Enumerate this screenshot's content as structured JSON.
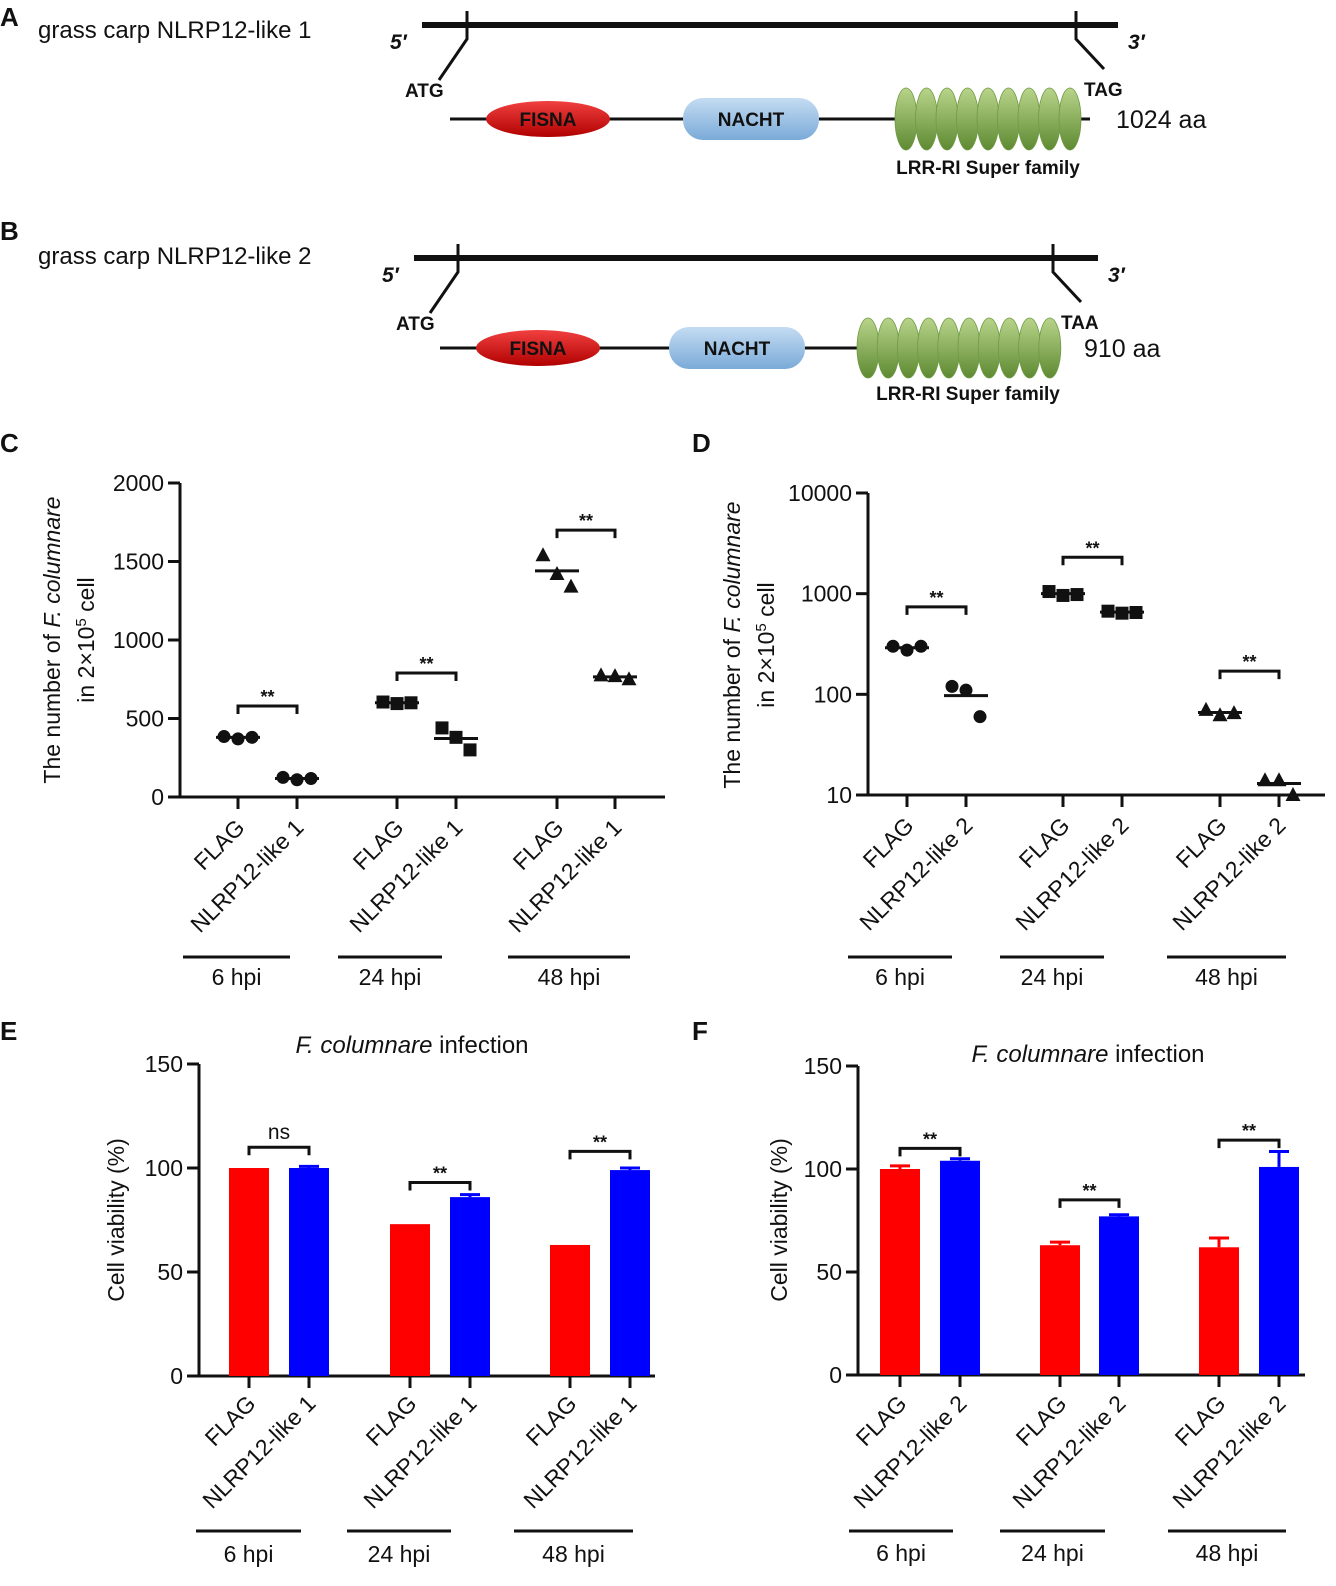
{
  "figure": {
    "panel_letters": [
      "A",
      "B",
      "C",
      "D",
      "E",
      "F"
    ]
  },
  "gene_diagrams": [
    {
      "panel": "A",
      "title": "grass carp NLRP12-like 1",
      "five_prime": "5′",
      "three_prime": "3′",
      "start_codon": "ATG",
      "stop_codon": "TAG",
      "domains": [
        "FISNA",
        "NACHT"
      ],
      "lrr_label": "LRR-RI Super family",
      "lrr_repeat_count": 9,
      "length": "1024 aa"
    },
    {
      "panel": "B",
      "title": "grass carp NLRP12-like 2",
      "five_prime": "5′",
      "three_prime": "3′",
      "start_codon": "ATG",
      "stop_codon": "TAA",
      "domains": [
        "FISNA",
        "NACHT"
      ],
      "lrr_label": "LRR-RI Super family",
      "lrr_repeat_count": 10,
      "length": "910 aa"
    }
  ],
  "colors": {
    "fisna": "#d81818",
    "nacht": "#9cc3e6",
    "lrr": "#8fb45a",
    "flag_bar": "#ff0000",
    "nlrp_bar": "#0000ff",
    "ink": "#111111"
  },
  "chart_data": [
    {
      "panel": "C",
      "type": "scatter",
      "scale": "linear",
      "ylabel_line1_prefix": "The number of ",
      "ylabel_line1_italic": "F. columnare",
      "ylabel_line2_prefix": "in 2×10",
      "ylabel_line2_sup": "5",
      "ylabel_line2_suffix": " cell",
      "ylim": [
        0,
        2000
      ],
      "yticks": [
        0,
        500,
        1000,
        1500,
        2000
      ],
      "categories": [
        "FLAG",
        "NLRP12-like 1",
        "FLAG",
        "NLRP12-like 1",
        "FLAG",
        "NLRP12-like 1"
      ],
      "groups": [
        "6 hpi",
        "24 hpi",
        "48 hpi"
      ],
      "series": [
        {
          "name": "FLAG 6 hpi",
          "marker": "circle",
          "values": [
            385,
            370,
            380
          ],
          "mean": 380
        },
        {
          "name": "NLRP12-like 1 6 hpi",
          "marker": "circle",
          "values": [
            125,
            110,
            118
          ],
          "mean": 118
        },
        {
          "name": "FLAG 24 hpi",
          "marker": "square",
          "values": [
            605,
            595,
            600
          ],
          "mean": 600
        },
        {
          "name": "NLRP12-like 1 24 hpi",
          "marker": "square",
          "values": [
            440,
            380,
            300
          ],
          "mean": 373
        },
        {
          "name": "FLAG 48 hpi",
          "marker": "triangle",
          "values": [
            1540,
            1420,
            1340
          ],
          "mean": 1440
        },
        {
          "name": "NLRP12-like 1 48 hpi",
          "marker": "triangle",
          "values": [
            775,
            770,
            750
          ],
          "mean": 765
        }
      ],
      "significance": [
        {
          "pair": [
            0,
            1
          ],
          "label": "**",
          "y": 580
        },
        {
          "pair": [
            2,
            3
          ],
          "label": "**",
          "y": 790
        },
        {
          "pair": [
            4,
            5
          ],
          "label": "**",
          "y": 1700
        }
      ]
    },
    {
      "panel": "D",
      "type": "scatter",
      "scale": "log",
      "ylabel_line1_prefix": "The number of ",
      "ylabel_line1_italic": "F. columnare",
      "ylabel_line2_prefix": "in 2×10",
      "ylabel_line2_sup": "5",
      "ylabel_line2_suffix": " cell",
      "ylim": [
        10,
        10000
      ],
      "yticks": [
        10,
        100,
        1000,
        10000
      ],
      "categories": [
        "FLAG",
        "NLRP12-like 2",
        "FLAG",
        "NLRP12-like 2",
        "FLAG",
        "NLRP12-like 2"
      ],
      "groups": [
        "6 hpi",
        "24 hpi",
        "48 hpi"
      ],
      "series": [
        {
          "name": "FLAG 6 hpi",
          "marker": "circle",
          "values": [
            300,
            275,
            300
          ],
          "mean": 290
        },
        {
          "name": "NLRP12-like 2 6 hpi",
          "marker": "circle",
          "values": [
            120,
            110,
            60
          ],
          "mean": 97
        },
        {
          "name": "FLAG 24 hpi",
          "marker": "square",
          "values": [
            1050,
            960,
            980
          ],
          "mean": 1000
        },
        {
          "name": "NLRP12-like 2 24 hpi",
          "marker": "square",
          "values": [
            670,
            640,
            650
          ],
          "mean": 655
        },
        {
          "name": "FLAG 48 hpi",
          "marker": "triangle",
          "values": [
            70,
            62,
            65
          ],
          "mean": 66
        },
        {
          "name": "NLRP12-like 2 48 hpi",
          "marker": "triangle",
          "values": [
            14,
            14,
            10
          ],
          "mean": 13
        }
      ],
      "significance": [
        {
          "pair": [
            0,
            1
          ],
          "label": "**",
          "y": 740
        },
        {
          "pair": [
            2,
            3
          ],
          "label": "**",
          "y": 2300
        },
        {
          "pair": [
            4,
            5
          ],
          "label": "**",
          "y": 170
        }
      ]
    },
    {
      "panel": "E",
      "type": "bar",
      "title_italic": "F. columnare",
      "title_rest": " infection",
      "ylabel": "Cell viability (%)",
      "ylim": [
        0,
        150
      ],
      "yticks": [
        0,
        50,
        100,
        150
      ],
      "categories": [
        "FLAG",
        "NLRP12-like 1",
        "FLAG",
        "NLRP12-like 1",
        "FLAG",
        "NLRP12-like 1"
      ],
      "groups": [
        "6 hpi",
        "24 hpi",
        "48 hpi"
      ],
      "values": [
        100,
        100,
        73,
        86,
        63,
        99
      ],
      "errors": [
        0,
        0.8,
        0,
        1.2,
        0,
        1.0
      ],
      "series_colors": [
        "flag_bar",
        "nlrp_bar",
        "flag_bar",
        "nlrp_bar",
        "flag_bar",
        "nlrp_bar"
      ],
      "significance": [
        {
          "pair": [
            0,
            1
          ],
          "label": "ns",
          "y": 110
        },
        {
          "pair": [
            2,
            3
          ],
          "label": "**",
          "y": 93
        },
        {
          "pair": [
            4,
            5
          ],
          "label": "**",
          "y": 108
        }
      ]
    },
    {
      "panel": "F",
      "type": "bar",
      "title_italic": "F. columnare",
      "title_rest": " infection",
      "ylabel": "Cell viability (%)",
      "ylim": [
        0,
        150
      ],
      "yticks": [
        0,
        50,
        100,
        150
      ],
      "categories": [
        "FLAG",
        "NLRP12-like 2",
        "FLAG",
        "NLRP12-like 2",
        "FLAG",
        "NLRP12-like 2"
      ],
      "groups": [
        "6 hpi",
        "24 hpi",
        "48 hpi"
      ],
      "values": [
        100,
        104,
        63,
        77,
        62,
        101
      ],
      "errors": [
        1.5,
        1.0,
        1.5,
        0.8,
        4.5,
        7.5
      ],
      "series_colors": [
        "flag_bar",
        "nlrp_bar",
        "flag_bar",
        "nlrp_bar",
        "flag_bar",
        "nlrp_bar"
      ],
      "significance": [
        {
          "pair": [
            0,
            1
          ],
          "label": "**",
          "y": 110
        },
        {
          "pair": [
            2,
            3
          ],
          "label": "**",
          "y": 85
        },
        {
          "pair": [
            4,
            5
          ],
          "label": "**",
          "y": 114
        }
      ]
    }
  ]
}
